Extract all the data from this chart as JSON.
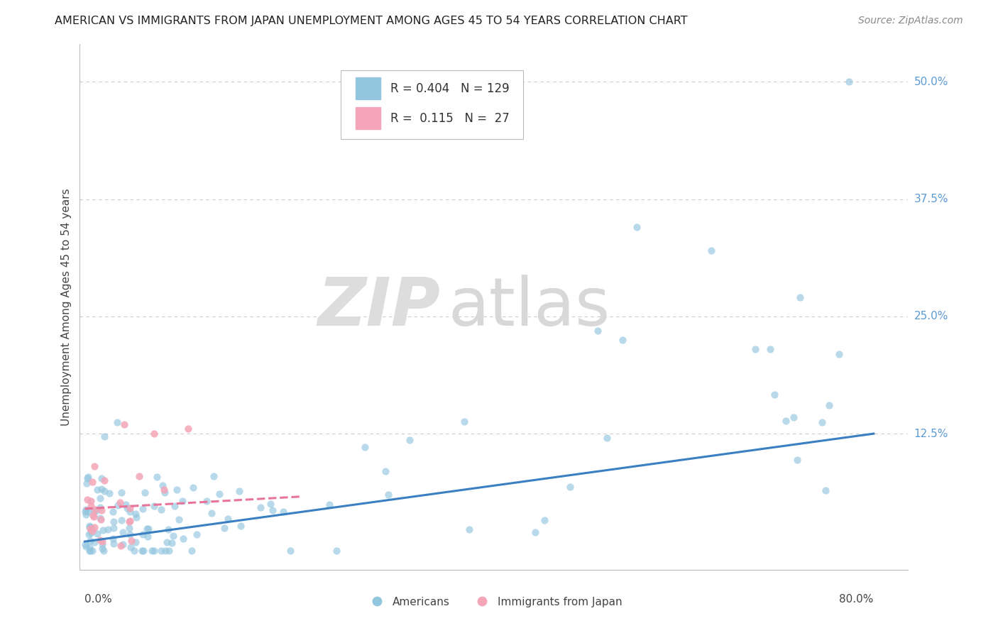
{
  "title": "AMERICAN VS IMMIGRANTS FROM JAPAN UNEMPLOYMENT AMONG AGES 45 TO 54 YEARS CORRELATION CHART",
  "source": "Source: ZipAtlas.com",
  "ylabel": "Unemployment Among Ages 45 to 54 years",
  "ytick_labels": [
    "12.5%",
    "25.0%",
    "37.5%",
    "50.0%"
  ],
  "ytick_values": [
    0.125,
    0.25,
    0.375,
    0.5
  ],
  "xlim": [
    0.0,
    0.8
  ],
  "ylim": [
    -0.02,
    0.54
  ],
  "legend_entries": [
    {
      "label": "Americans",
      "R": "0.404",
      "N": "129",
      "color": "#92c5de"
    },
    {
      "label": "Immigrants from Japan",
      "R": "0.115",
      "N": "27",
      "color": "#f4a6b8"
    }
  ],
  "watermark_zip": "ZIP",
  "watermark_atlas": "atlas",
  "background_color": "#ffffff",
  "grid_color": "#cccccc",
  "americans_line_color": "#3a7fc1",
  "japan_line_color": "#e8749a",
  "title_fontsize": 11.5,
  "source_fontsize": 10,
  "axis_label_fontsize": 11,
  "tick_fontsize": 11,
  "legend_fontsize": 12,
  "scatter_size": 55,
  "scatter_alpha": 0.65,
  "line_width": 2.2,
  "right_tick_color": "#5b9bd5"
}
